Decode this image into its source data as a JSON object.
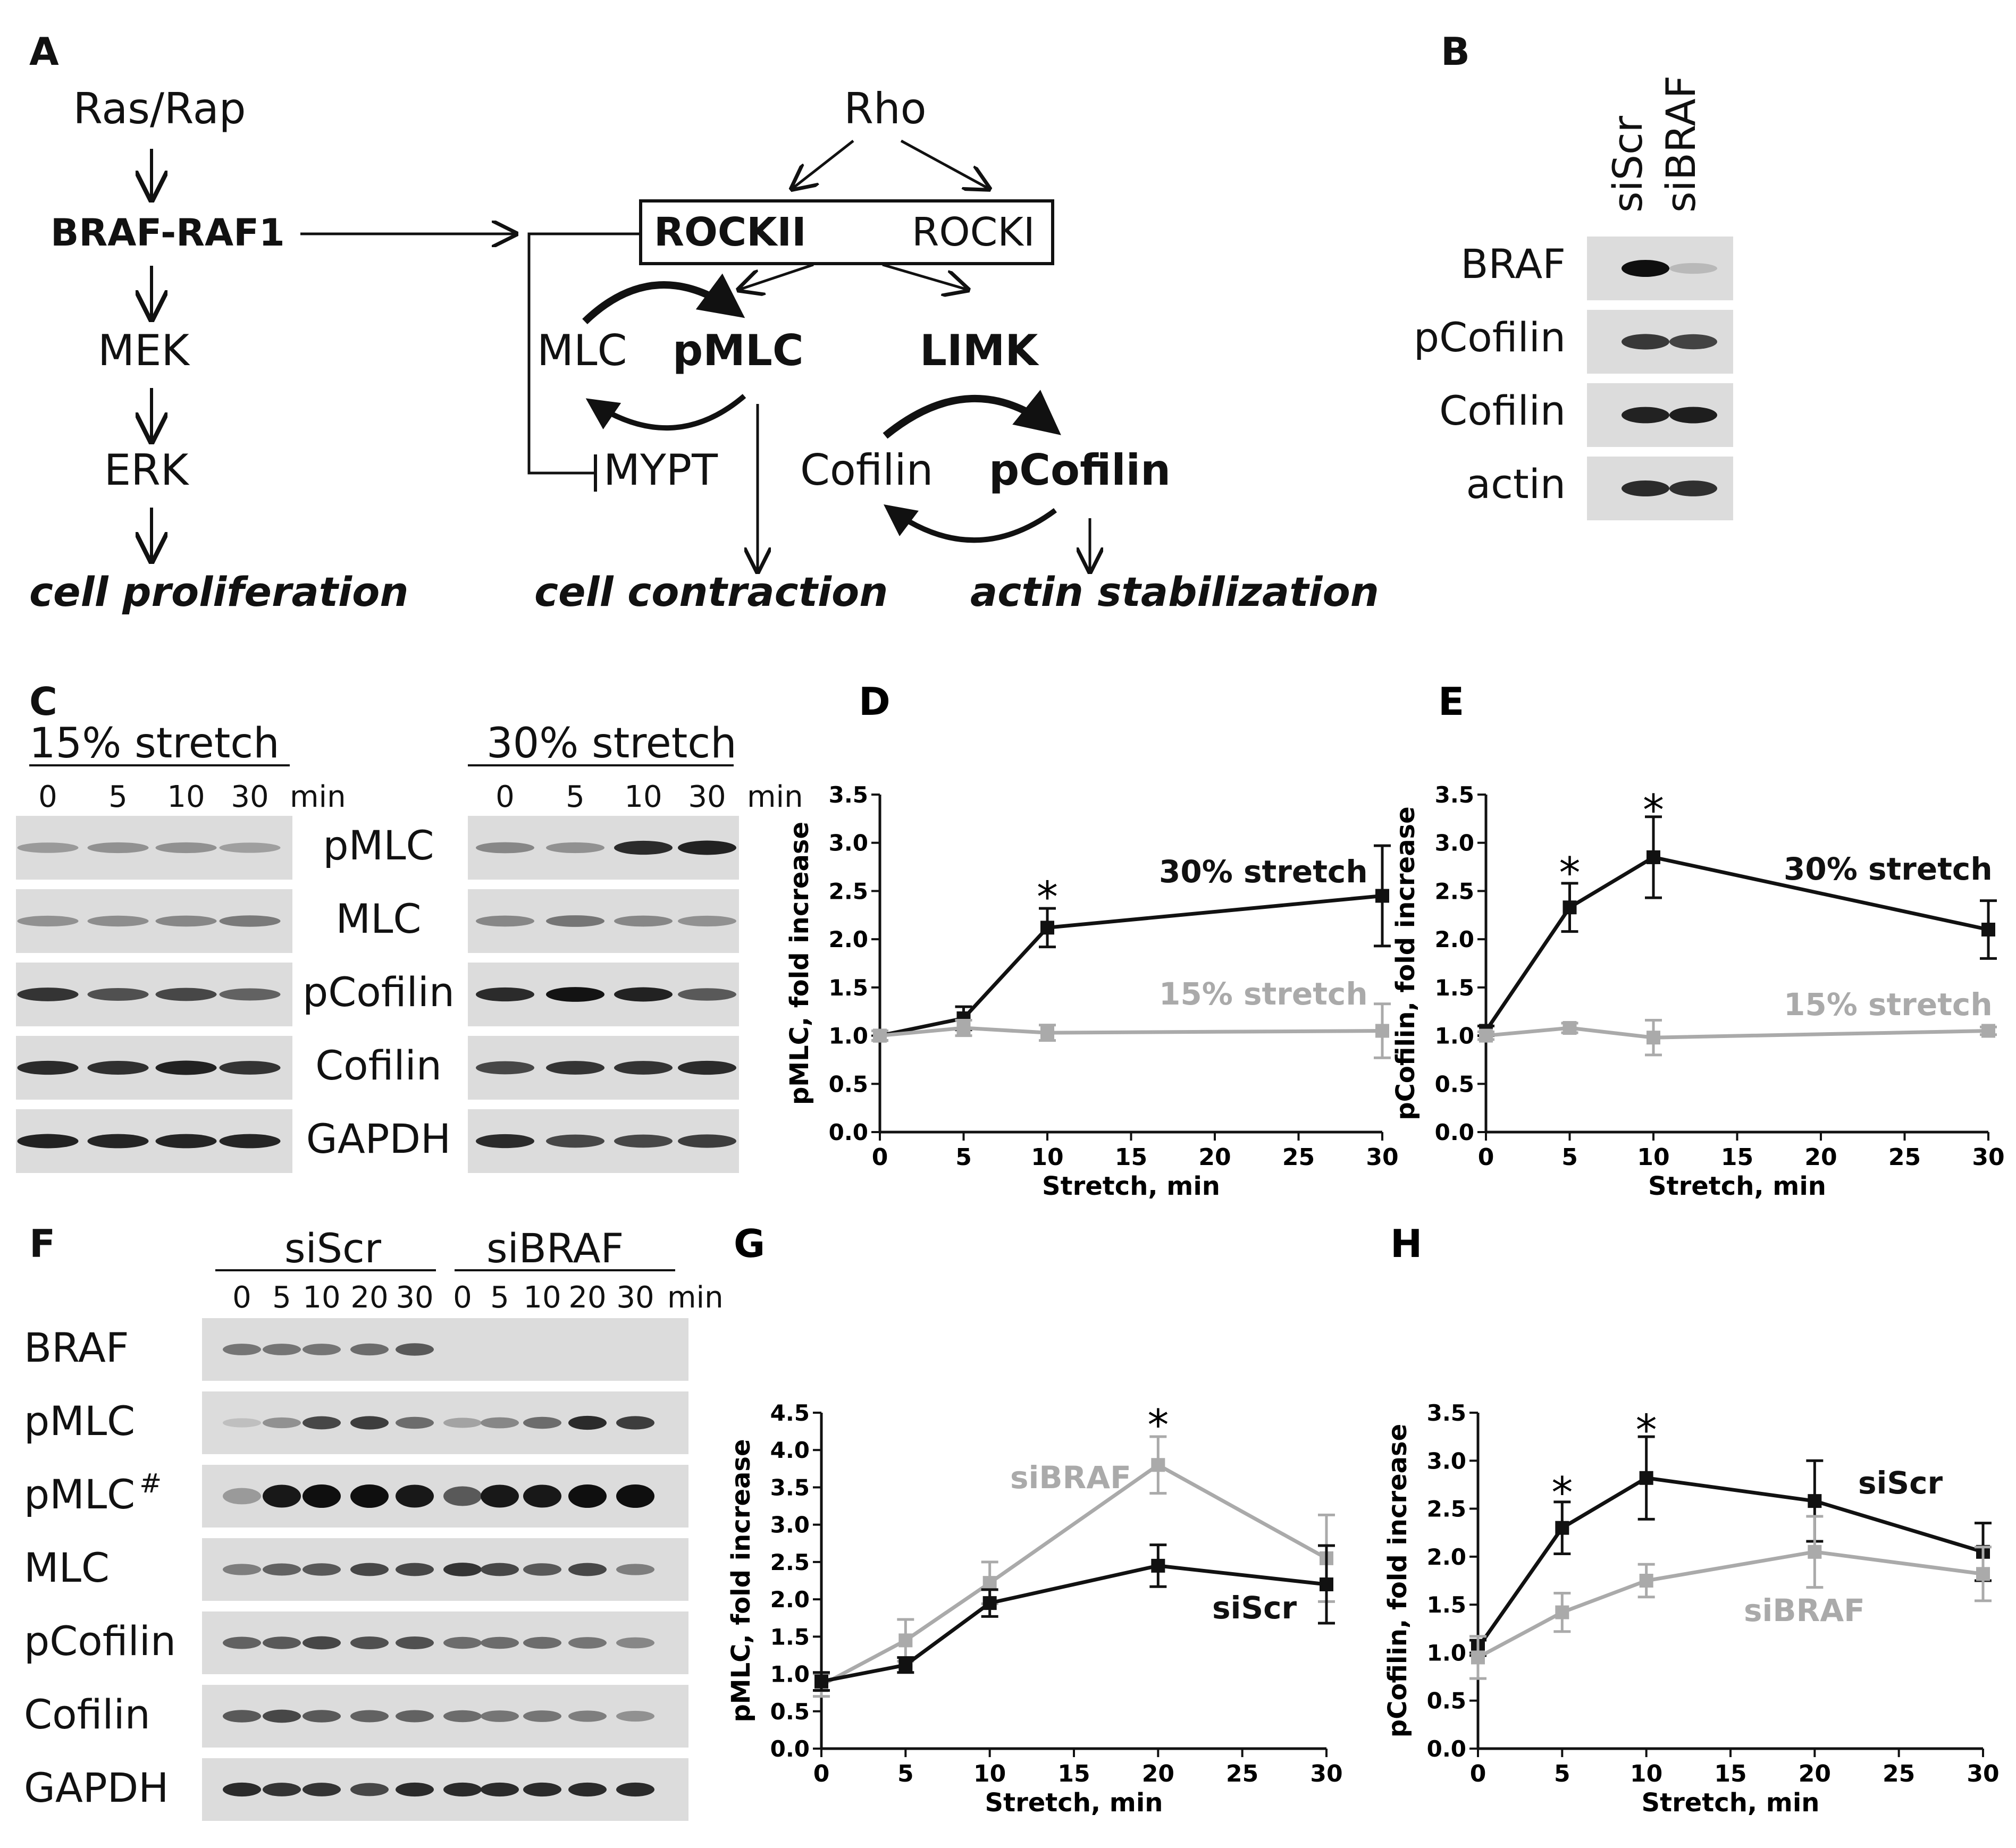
{
  "panel_letters": [
    "A",
    "B",
    "C",
    "D",
    "E",
    "F",
    "G",
    "H"
  ],
  "pathway": {
    "ras": "Ras/Rap",
    "braf_raf1": "BRAF-RAF1",
    "mek": "MEK",
    "erk": "ERK",
    "cell_proliferation": "cell proliferation",
    "rho": "Rho",
    "rockii": "ROCKII",
    "rocki": "ROCKI",
    "mlc": "MLC",
    "pmlc": "pMLC",
    "mypt": "MYPT",
    "limk": "LIMK",
    "cofilin": "Cofilin",
    "pcofilin": "pCofilin",
    "cell_contraction": "cell contraction",
    "actin_stabilization": "actin stabilization"
  },
  "blot_b": {
    "lanes": [
      "siScr",
      "siBRAF"
    ],
    "rows": [
      "BRAF",
      "pCofilin",
      "Cofilin",
      "actin"
    ]
  },
  "blot_c": {
    "group1": "15% stretch",
    "group2": "30% stretch",
    "times": [
      "0",
      "5",
      "10",
      "30"
    ],
    "unit": "min",
    "rows": [
      "pMLC",
      "MLC",
      "pCofilin",
      "Cofilin",
      "GAPDH"
    ]
  },
  "blot_f": {
    "group1": "siScr",
    "group2": "siBRAF",
    "times": [
      "0",
      "5",
      "10",
      "20",
      "30"
    ],
    "unit": "min",
    "rows": [
      "BRAF",
      "pMLC",
      "pMLC",
      "MLC",
      "pCofilin",
      "Cofilin",
      "GAPDH"
    ],
    "hash_mark": "#"
  },
  "colors": {
    "black_series": "#111111",
    "gray_series": "#aaaaaa",
    "blot_bg": "#dcdcdc",
    "band": "#1c1c1c"
  },
  "chart_data": [
    {
      "panel": "D",
      "type": "line",
      "xlabel": "Stretch, min",
      "ylabel": "pMLC, fold increase",
      "xlim": [
        0,
        30
      ],
      "ylim": [
        0,
        3.5
      ],
      "xticks": [
        0,
        5,
        10,
        15,
        20,
        25,
        30
      ],
      "yticks": [
        0.0,
        0.5,
        1.0,
        1.5,
        2.0,
        2.5,
        3.0,
        3.5
      ],
      "series": [
        {
          "name": "30% stretch",
          "color": "black",
          "x": [
            0,
            5,
            10,
            30
          ],
          "y": [
            1.0,
            1.18,
            2.12,
            2.45
          ],
          "err": [
            0.05,
            0.12,
            0.2,
            0.52
          ]
        },
        {
          "name": "15% stretch",
          "color": "gray",
          "x": [
            0,
            5,
            10,
            30
          ],
          "y": [
            1.0,
            1.08,
            1.03,
            1.05
          ],
          "err": [
            0.05,
            0.08,
            0.08,
            0.28
          ]
        }
      ],
      "annotations": [
        {
          "text": "*",
          "x": 10,
          "y": 2.45
        }
      ]
    },
    {
      "panel": "E",
      "type": "line",
      "xlabel": "Stretch, min",
      "ylabel": "pCofilin, fold increase",
      "xlim": [
        0,
        30
      ],
      "ylim": [
        0,
        3.5
      ],
      "xticks": [
        0,
        5,
        10,
        15,
        20,
        25,
        30
      ],
      "yticks": [
        0.0,
        0.5,
        1.0,
        1.5,
        2.0,
        2.5,
        3.0,
        3.5
      ],
      "series": [
        {
          "name": "30% stretch",
          "color": "black",
          "x": [
            0,
            5,
            10,
            30
          ],
          "y": [
            1.05,
            2.33,
            2.85,
            2.1
          ],
          "err": [
            0.05,
            0.25,
            0.42,
            0.3
          ]
        },
        {
          "name": "15% stretch",
          "color": "gray",
          "x": [
            0,
            5,
            10,
            30
          ],
          "y": [
            1.0,
            1.08,
            0.98,
            1.05
          ],
          "err": [
            0.04,
            0.05,
            0.18,
            0.04
          ]
        }
      ],
      "annotations": [
        {
          "text": "*",
          "x": 5,
          "y": 2.7
        },
        {
          "text": "*",
          "x": 10,
          "y": 3.35
        }
      ]
    },
    {
      "panel": "G",
      "type": "line",
      "xlabel": "Stretch, min",
      "ylabel": "pMLC, fold increase",
      "xlim": [
        0,
        30
      ],
      "ylim": [
        0,
        4.5
      ],
      "xticks": [
        0,
        5,
        10,
        15,
        20,
        25,
        30
      ],
      "yticks": [
        0.0,
        0.5,
        1.0,
        1.5,
        2.0,
        2.5,
        3.0,
        3.5,
        4.0,
        4.5
      ],
      "series": [
        {
          "name": "siBRAF",
          "color": "gray",
          "x": [
            0,
            5,
            10,
            20,
            30
          ],
          "y": [
            0.85,
            1.45,
            2.22,
            3.8,
            2.55
          ],
          "err": [
            0.15,
            0.28,
            0.28,
            0.38,
            0.58
          ]
        },
        {
          "name": "siScr",
          "color": "black",
          "x": [
            0,
            5,
            10,
            20,
            30
          ],
          "y": [
            0.9,
            1.12,
            1.95,
            2.45,
            2.2
          ],
          "err": [
            0.12,
            0.1,
            0.18,
            0.28,
            0.52
          ]
        }
      ],
      "annotations": [
        {
          "text": "*",
          "x": 20,
          "y": 4.35
        }
      ]
    },
    {
      "panel": "H",
      "type": "line",
      "xlabel": "Stretch, min",
      "ylabel": "pCofilin, fold increase",
      "xlim": [
        0,
        30
      ],
      "ylim": [
        0,
        3.5
      ],
      "xticks": [
        0,
        5,
        10,
        15,
        20,
        25,
        30
      ],
      "yticks": [
        0.0,
        0.5,
        1.0,
        1.5,
        2.0,
        2.5,
        3.0,
        3.5
      ],
      "series": [
        {
          "name": "siScr",
          "color": "black",
          "x": [
            0,
            5,
            10,
            20,
            30
          ],
          "y": [
            1.05,
            2.3,
            2.82,
            2.58,
            2.05
          ],
          "err": [
            0.08,
            0.27,
            0.43,
            0.42,
            0.3
          ]
        },
        {
          "name": "siBRAF",
          "color": "gray",
          "x": [
            0,
            5,
            10,
            20,
            30
          ],
          "y": [
            0.95,
            1.42,
            1.75,
            2.05,
            1.82
          ],
          "err": [
            0.22,
            0.2,
            0.17,
            0.37,
            0.28
          ]
        }
      ],
      "annotations": [
        {
          "text": "*",
          "x": 5,
          "y": 2.68
        },
        {
          "text": "*",
          "x": 10,
          "y": 3.33
        }
      ]
    }
  ]
}
